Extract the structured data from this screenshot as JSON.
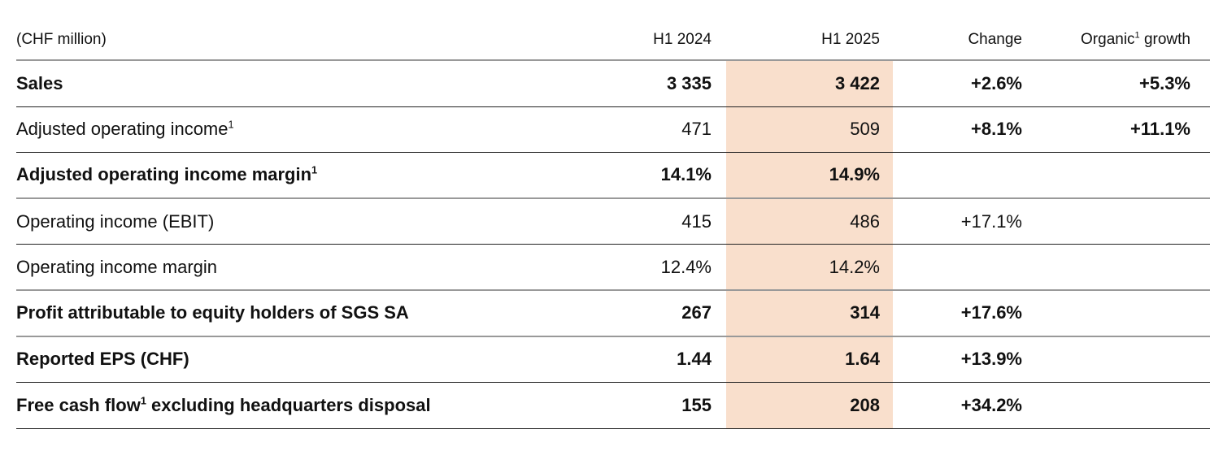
{
  "table": {
    "unit_label": "(CHF million)",
    "columns": {
      "h1_2024": "H1 2024",
      "h1_2025": "H1 2025",
      "change": "Change",
      "organic_pre": "Organic",
      "organic_sup": "1",
      "organic_post": " growth"
    },
    "rows": [
      {
        "label_pre": "Sales",
        "label_sup": "",
        "label_post": "",
        "h1_2024": "3 335",
        "h1_2025": "3 422",
        "change": "+2.6%",
        "organic": "+5.3%",
        "label_bold": true,
        "value_bold": true,
        "change_bold": true,
        "divider": "dark"
      },
      {
        "label_pre": "Adjusted operating income",
        "label_sup": "1",
        "label_post": "",
        "h1_2024": "471",
        "h1_2025": "509",
        "change": "+8.1%",
        "organic": "+11.1%",
        "label_bold": false,
        "value_bold": false,
        "change_bold": true,
        "divider": "dark"
      },
      {
        "label_pre": "Adjusted operating income margin",
        "label_sup": "1",
        "label_post": "",
        "h1_2024": "14.1%",
        "h1_2025": "14.9%",
        "change": "",
        "organic": "",
        "label_bold": true,
        "value_bold": true,
        "change_bold": false,
        "divider": "gray"
      },
      {
        "label_pre": "Operating income (EBIT)",
        "label_sup": "",
        "label_post": "",
        "h1_2024": "415",
        "h1_2025": "486",
        "change": "+17.1%",
        "organic": "",
        "label_bold": false,
        "value_bold": false,
        "change_bold": false,
        "divider": "dark"
      },
      {
        "label_pre": "Operating income margin",
        "label_sup": "",
        "label_post": "",
        "h1_2024": "12.4%",
        "h1_2025": "14.2%",
        "change": "",
        "organic": "",
        "label_bold": false,
        "value_bold": false,
        "change_bold": false,
        "divider": "gray"
      },
      {
        "label_pre": "Profit attributable to equity holders of SGS SA",
        "label_sup": "",
        "label_post": "",
        "h1_2024": "267",
        "h1_2025": "314",
        "change": "+17.6%",
        "organic": "",
        "label_bold": true,
        "value_bold": true,
        "change_bold": true,
        "divider": "gray"
      },
      {
        "label_pre": "Reported EPS (CHF)",
        "label_sup": "",
        "label_post": "",
        "h1_2024": "1.44",
        "h1_2025": "1.64",
        "change": "+13.9%",
        "organic": "",
        "label_bold": true,
        "value_bold": true,
        "change_bold": true,
        "divider": "dark"
      },
      {
        "label_pre": "Free cash flow",
        "label_sup": "1",
        "label_post": " excluding headquarters disposal",
        "h1_2024": "155",
        "h1_2025": "208",
        "change": "+34.2%",
        "organic": "",
        "label_bold": true,
        "value_bold": true,
        "change_bold": true,
        "divider": "dark"
      }
    ]
  },
  "colors": {
    "highlight": "#f9dfcc",
    "divider_dark": "#222222",
    "divider_gray": "#999999",
    "text": "#111111"
  }
}
